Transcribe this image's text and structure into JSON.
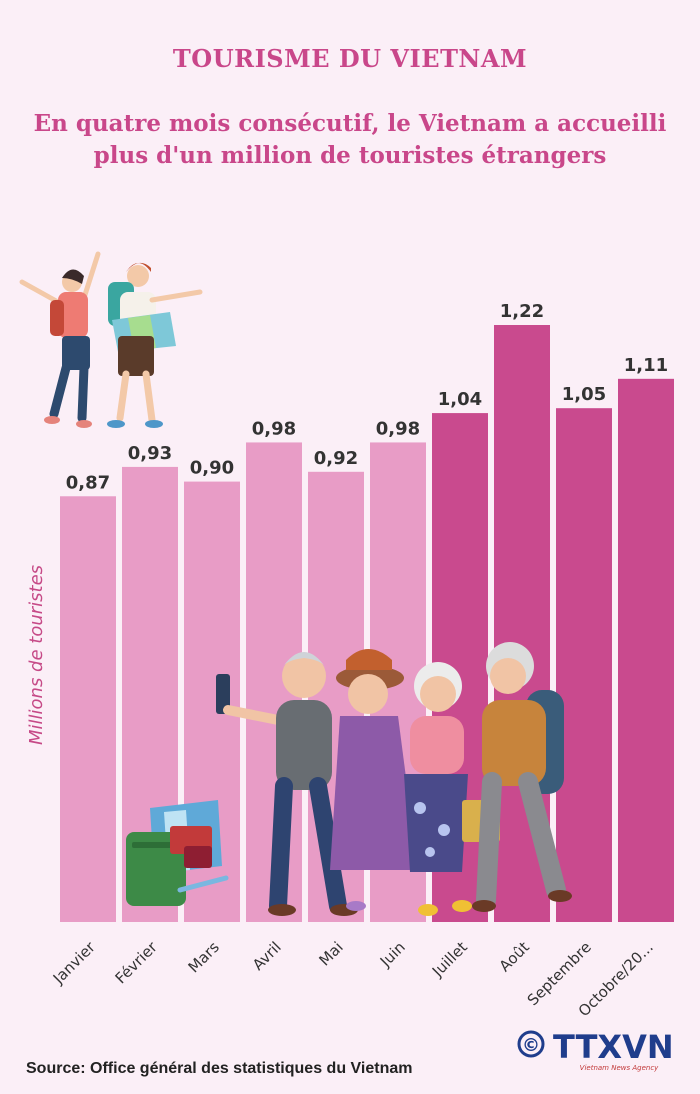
{
  "header": {
    "title": "TOURISME DU VIETNAM",
    "subtitle_line1": "En quatre mois consécutif, le Vietnam a accueilli",
    "subtitle_line2": "plus d'un million de touristes étrangers"
  },
  "chart_data": {
    "type": "bar",
    "categories": [
      "Janvier",
      "Février",
      "Mars",
      "Avril",
      "Mai",
      "Juin",
      "Juillet",
      "Août",
      "Septembre",
      "Octobre/20..."
    ],
    "values": [
      0.87,
      0.93,
      0.9,
      0.98,
      0.92,
      0.98,
      1.04,
      1.22,
      1.05,
      1.11
    ],
    "value_labels": [
      "0,87",
      "0,93",
      "0,90",
      "0,98",
      "0,92",
      "0,98",
      "1,04",
      "1,22",
      "1,05",
      "1,11"
    ],
    "ylabel": "Millions de touristes",
    "ylim": [
      0,
      1.22
    ],
    "grid": false,
    "colors": {
      "light": "#e89cc6",
      "dark": "#c94a8e",
      "dark_from_index": 6
    }
  },
  "footer": {
    "source": "Source: Office général des statistiques du Vietnam",
    "copyright_symbol": "©",
    "logo_text": "TTXVN",
    "logo_subtext": "Vietnam News Agency"
  },
  "icons": [
    "tourists-illustration",
    "elderly-tourists-illustration",
    "luggage-icon"
  ]
}
